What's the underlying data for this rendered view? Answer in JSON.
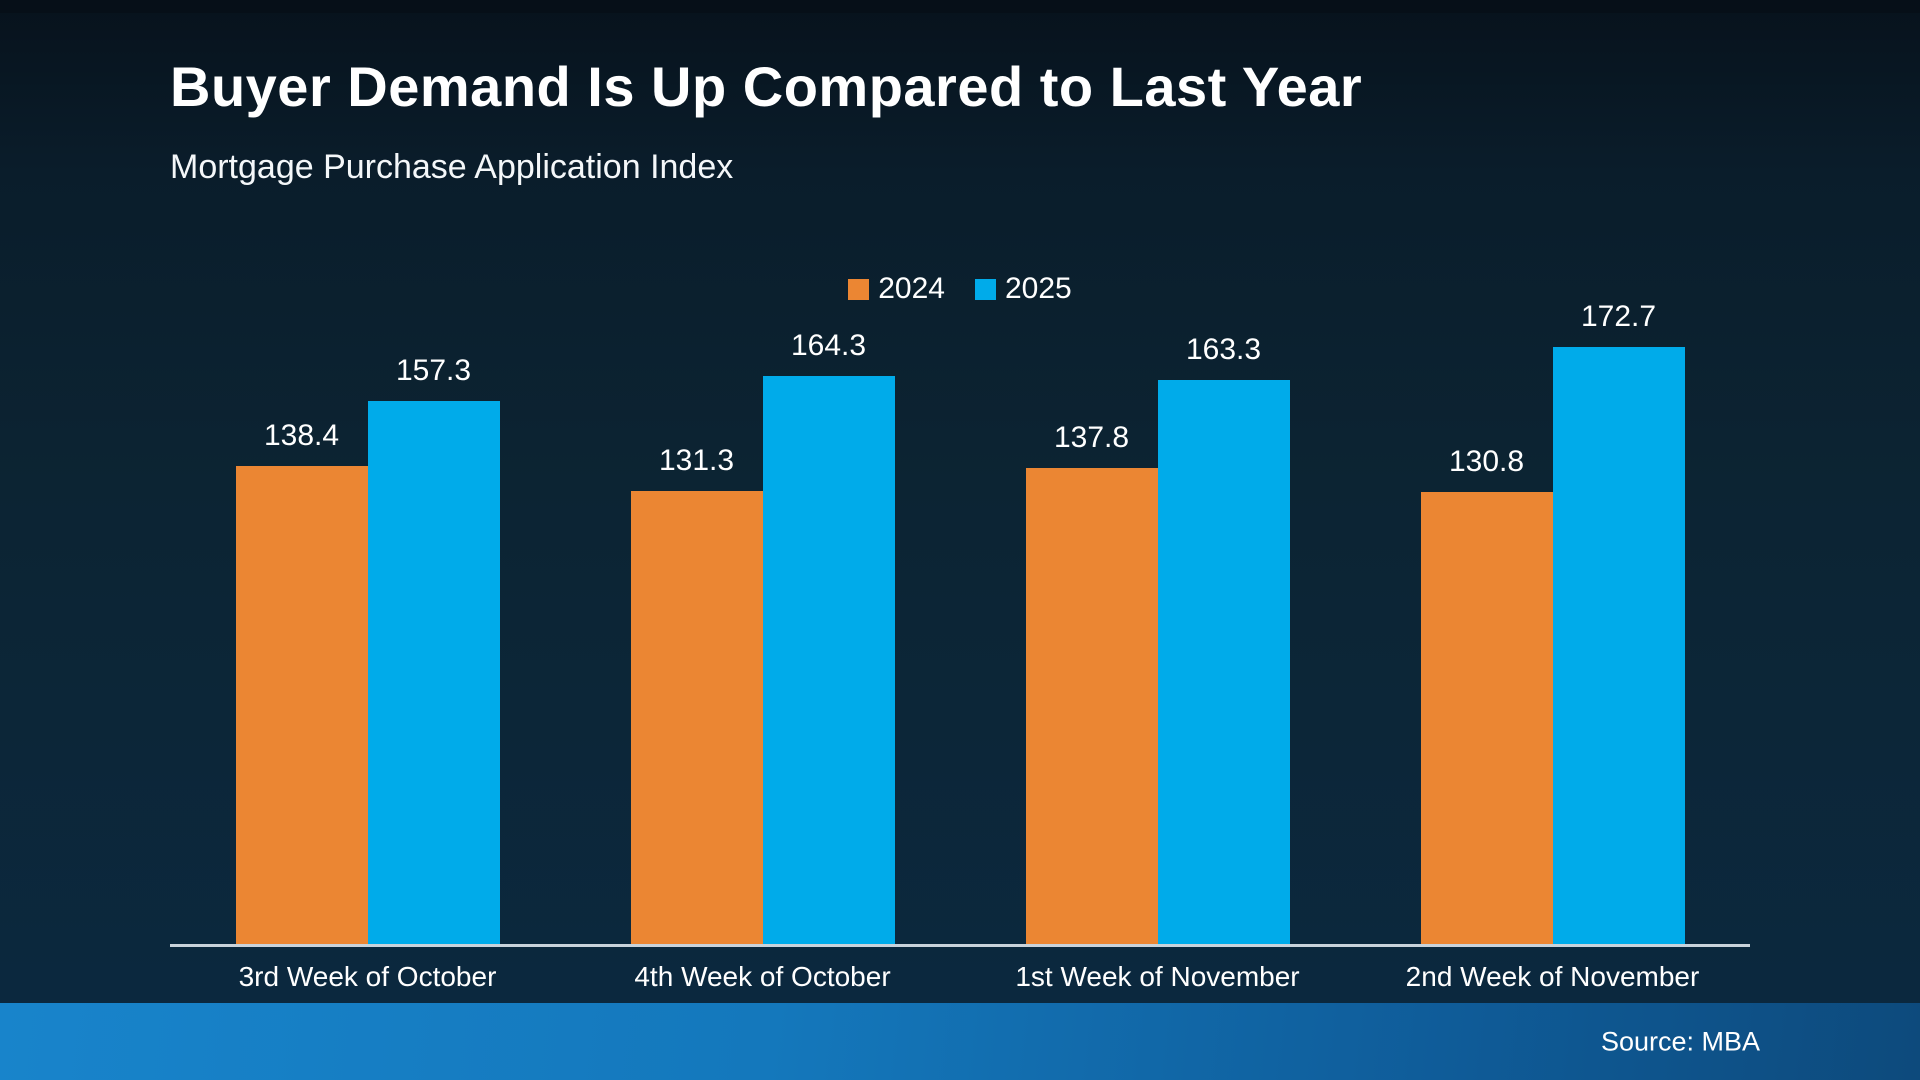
{
  "page": {
    "title": "Buyer Demand Is Up Compared to Last Year",
    "subtitle": "Mortgage Purchase Application Index",
    "source": "Source: MBA"
  },
  "colors": {
    "series_2024": "#EB8633",
    "series_2025": "#00ABEA",
    "background_top": "#07121C",
    "background_bottom": "#0B2940",
    "top_strip": "#060F18",
    "axis_line": "#C9D3DB",
    "band_left": "#1884CB",
    "band_right": "#0D4A7C",
    "text": "#FFFFFF"
  },
  "chart_data": {
    "type": "bar",
    "title": "Buyer Demand Is Up Compared to Last Year",
    "subtitle": "Mortgage Purchase Application Index",
    "source": "Source: MBA",
    "categories": [
      "3rd Week of October",
      "4th Week of October",
      "1st Week of November",
      "2nd Week of November"
    ],
    "series": [
      {
        "name": "2024",
        "color": "#EB8633",
        "values": [
          138.4,
          131.3,
          137.8,
          130.8
        ]
      },
      {
        "name": "2025",
        "color": "#00ABEA",
        "values": [
          157.3,
          164.3,
          163.3,
          172.7
        ]
      }
    ],
    "ylim": [
      0,
      180
    ],
    "xlabel": "",
    "ylabel": "",
    "grid": false,
    "data_labels": true,
    "legend_position": "top-center"
  }
}
